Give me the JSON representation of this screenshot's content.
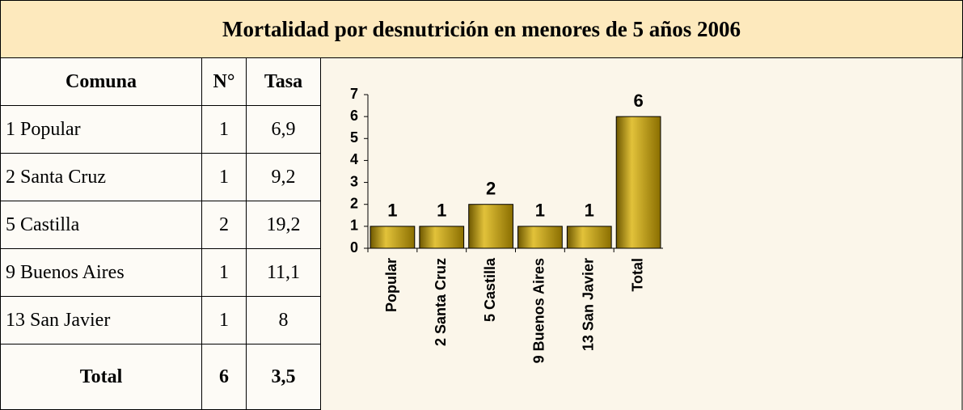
{
  "title": "Mortalidad por desnutrición en menores de 5 años  2006",
  "table": {
    "headers": [
      "Comuna",
      "N°",
      "Tasa"
    ],
    "rows": [
      [
        "1 Popular",
        "1",
        "6,9"
      ],
      [
        "2 Santa Cruz",
        "1",
        "9,2"
      ],
      [
        "5 Castilla",
        "2",
        "19,2"
      ],
      [
        "9 Buenos Aires",
        "1",
        "11,1"
      ],
      [
        "13 San Javier",
        "1",
        "8"
      ]
    ],
    "total": [
      "Total",
      "6",
      "3,5"
    ]
  },
  "chart_data": {
    "type": "bar",
    "categories": [
      "Popular",
      "2 Santa Cruz",
      "5 Castilla",
      "9 Buenos Aires",
      "13 San Javier",
      "Total"
    ],
    "values": [
      1,
      1,
      2,
      1,
      1,
      6
    ],
    "color": "#b8950a",
    "ylim": [
      0,
      7
    ],
    "yticks": [
      0,
      1,
      2,
      3,
      4,
      5,
      6,
      7
    ]
  }
}
